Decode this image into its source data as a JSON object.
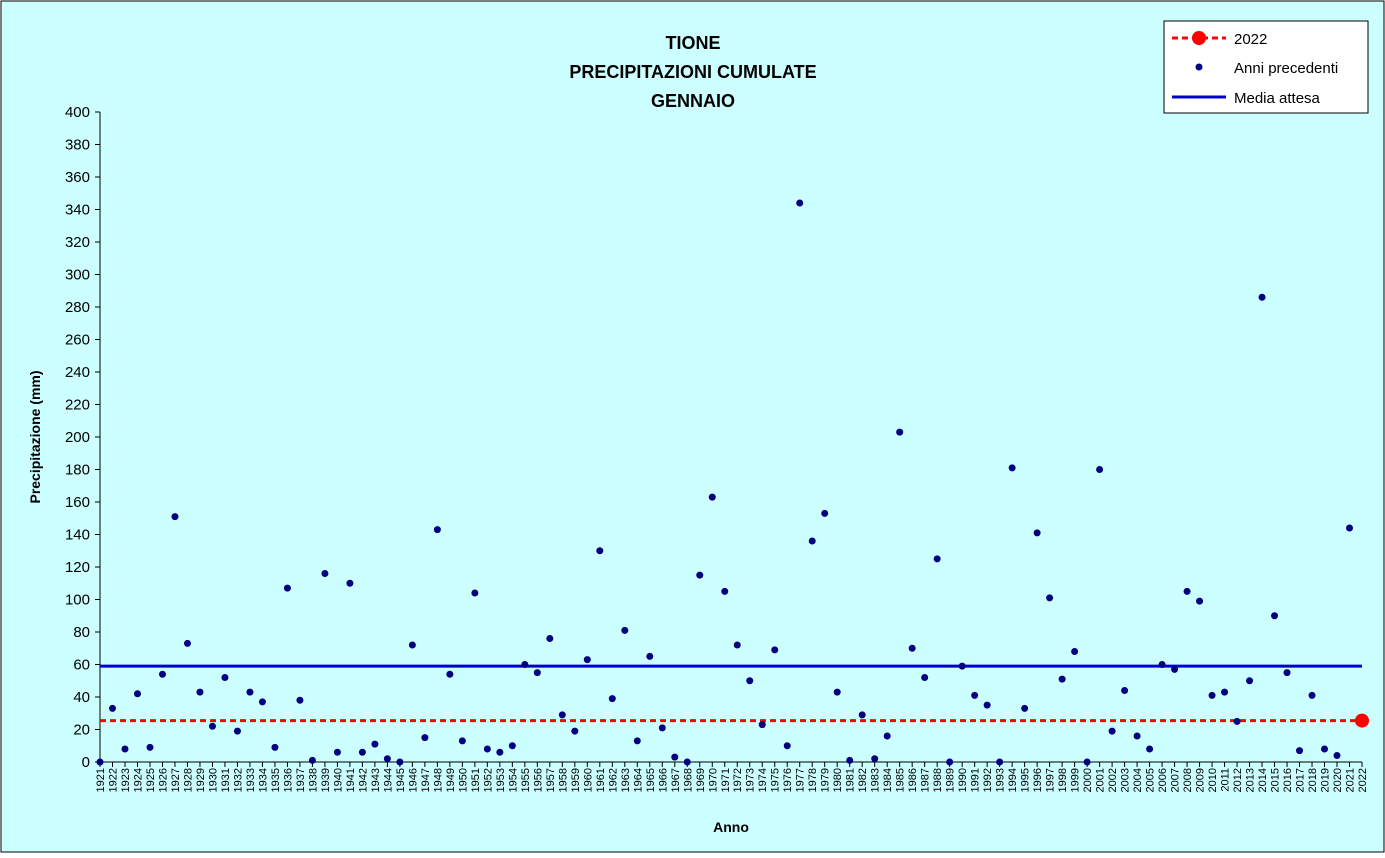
{
  "chart_data": {
    "type": "scatter",
    "title_lines": [
      "TIONE",
      "PRECIPITAZIONI CUMULATE",
      "GENNAIO"
    ],
    "xlabel": "Anno",
    "ylabel": "Precipitazione (mm)",
    "ylim": [
      0,
      400
    ],
    "y_ticks": [
      0,
      20,
      40,
      60,
      80,
      100,
      120,
      140,
      160,
      180,
      200,
      220,
      240,
      260,
      280,
      300,
      320,
      340,
      360,
      380,
      400
    ],
    "x_categories": [
      "1921",
      "1922",
      "1923",
      "1924",
      "1925",
      "1926",
      "1927",
      "1928",
      "1929",
      "1930",
      "1931",
      "1932",
      "1933",
      "1934",
      "1935",
      "1936",
      "1937",
      "1938",
      "1939",
      "1940",
      "1941",
      "1942",
      "1943",
      "1944",
      "1945",
      "1946",
      "1947",
      "1948",
      "1949",
      "1950",
      "1951",
      "1952",
      "1953",
      "1954",
      "1955",
      "1956",
      "1957",
      "1958",
      "1959",
      "1960",
      "1961",
      "1962",
      "1963",
      "1964",
      "1965",
      "1966",
      "1967",
      "1968",
      "1969",
      "1970",
      "1971",
      "1972",
      "1973",
      "1974",
      "1975",
      "1976",
      "1977",
      "1978",
      "1979",
      "1980",
      "1981",
      "1982",
      "1983",
      "1984",
      "1985",
      "1986",
      "1987",
      "1988",
      "1989",
      "1990",
      "1991",
      "1992",
      "1993",
      "1994",
      "1995",
      "1996",
      "1997",
      "1998",
      "1999",
      "2000",
      "2001",
      "2002",
      "2003",
      "2004",
      "2005",
      "2006",
      "2007",
      "2008",
      "2009",
      "2010",
      "2011",
      "2012",
      "2013",
      "2014",
      "2015",
      "2016",
      "2017",
      "2018",
      "2019",
      "2020",
      "2021",
      "2022"
    ],
    "grid": false,
    "legend_position": "top-right",
    "legend": [
      {
        "label": "2022",
        "kind": "dashed-line-with-marker",
        "color": "#ff0000"
      },
      {
        "label": "Anni precedenti",
        "kind": "marker",
        "color": "#000080"
      },
      {
        "label": "Media attesa",
        "kind": "line",
        "color": "#0000cc"
      }
    ],
    "series": [
      {
        "name": "Anni precedenti",
        "color": "#000080",
        "points": [
          {
            "x": "1921",
            "y": 0
          },
          {
            "x": "1922",
            "y": 33
          },
          {
            "x": "1923",
            "y": 8
          },
          {
            "x": "1924",
            "y": 42
          },
          {
            "x": "1925",
            "y": 9
          },
          {
            "x": "1926",
            "y": 54
          },
          {
            "x": "1927",
            "y": 151
          },
          {
            "x": "1928",
            "y": 73
          },
          {
            "x": "1929",
            "y": 43
          },
          {
            "x": "1930",
            "y": 22
          },
          {
            "x": "1931",
            "y": 52
          },
          {
            "x": "1932",
            "y": 19
          },
          {
            "x": "1933",
            "y": 43
          },
          {
            "x": "1934",
            "y": 37
          },
          {
            "x": "1935",
            "y": 9
          },
          {
            "x": "1936",
            "y": 107
          },
          {
            "x": "1937",
            "y": 38
          },
          {
            "x": "1938",
            "y": 1
          },
          {
            "x": "1939",
            "y": 116
          },
          {
            "x": "1940",
            "y": 6
          },
          {
            "x": "1941",
            "y": 110
          },
          {
            "x": "1942",
            "y": 6
          },
          {
            "x": "1943",
            "y": 11
          },
          {
            "x": "1944",
            "y": 2
          },
          {
            "x": "1945",
            "y": 0
          },
          {
            "x": "1946",
            "y": 72
          },
          {
            "x": "1947",
            "y": 15
          },
          {
            "x": "1948",
            "y": 143
          },
          {
            "x": "1949",
            "y": 54
          },
          {
            "x": "1950",
            "y": 13
          },
          {
            "x": "1951",
            "y": 104
          },
          {
            "x": "1952",
            "y": 8
          },
          {
            "x": "1953",
            "y": 6
          },
          {
            "x": "1954",
            "y": 10
          },
          {
            "x": "1955",
            "y": 60
          },
          {
            "x": "1956",
            "y": 55
          },
          {
            "x": "1957",
            "y": 76
          },
          {
            "x": "1958",
            "y": 29
          },
          {
            "x": "1959",
            "y": 19
          },
          {
            "x": "1960",
            "y": 63
          },
          {
            "x": "1961",
            "y": 130
          },
          {
            "x": "1962",
            "y": 39
          },
          {
            "x": "1963",
            "y": 81
          },
          {
            "x": "1964",
            "y": 13
          },
          {
            "x": "1965",
            "y": 65
          },
          {
            "x": "1966",
            "y": 21
          },
          {
            "x": "1967",
            "y": 3
          },
          {
            "x": "1968",
            "y": 0
          },
          {
            "x": "1969",
            "y": 115
          },
          {
            "x": "1970",
            "y": 163
          },
          {
            "x": "1971",
            "y": 105
          },
          {
            "x": "1972",
            "y": 72
          },
          {
            "x": "1973",
            "y": 50
          },
          {
            "x": "1974",
            "y": 23
          },
          {
            "x": "1975",
            "y": 69
          },
          {
            "x": "1976",
            "y": 10
          },
          {
            "x": "1977",
            "y": 344
          },
          {
            "x": "1978",
            "y": 136
          },
          {
            "x": "1979",
            "y": 153
          },
          {
            "x": "1980",
            "y": 43
          },
          {
            "x": "1981",
            "y": 1
          },
          {
            "x": "1982",
            "y": 29
          },
          {
            "x": "1983",
            "y": 2
          },
          {
            "x": "1984",
            "y": 16
          },
          {
            "x": "1985",
            "y": 203
          },
          {
            "x": "1986",
            "y": 70
          },
          {
            "x": "1987",
            "y": 52
          },
          {
            "x": "1988",
            "y": 125
          },
          {
            "x": "1989",
            "y": 0
          },
          {
            "x": "1990",
            "y": 59
          },
          {
            "x": "1991",
            "y": 41
          },
          {
            "x": "1992",
            "y": 35
          },
          {
            "x": "1993",
            "y": 0
          },
          {
            "x": "1994",
            "y": 181
          },
          {
            "x": "1995",
            "y": 33
          },
          {
            "x": "1996",
            "y": 141
          },
          {
            "x": "1997",
            "y": 101
          },
          {
            "x": "1998",
            "y": 51
          },
          {
            "x": "1999",
            "y": 68
          },
          {
            "x": "2000",
            "y": 0
          },
          {
            "x": "2001",
            "y": 180
          },
          {
            "x": "2002",
            "y": 19
          },
          {
            "x": "2003",
            "y": 44
          },
          {
            "x": "2004",
            "y": 16
          },
          {
            "x": "2005",
            "y": 8
          },
          {
            "x": "2006",
            "y": 60
          },
          {
            "x": "2007",
            "y": 57
          },
          {
            "x": "2008",
            "y": 105
          },
          {
            "x": "2009",
            "y": 99
          },
          {
            "x": "2010",
            "y": 41
          },
          {
            "x": "2011",
            "y": 43
          },
          {
            "x": "2012",
            "y": 25
          },
          {
            "x": "2013",
            "y": 50
          },
          {
            "x": "2014",
            "y": 286
          },
          {
            "x": "2015",
            "y": 90
          },
          {
            "x": "2016",
            "y": 55
          },
          {
            "x": "2017",
            "y": 7
          },
          {
            "x": "2018",
            "y": 41
          },
          {
            "x": "2019",
            "y": 8
          },
          {
            "x": "2020",
            "y": 4
          },
          {
            "x": "2021",
            "y": 144
          }
        ]
      },
      {
        "name": "2022",
        "color": "#ff0000",
        "reference_value": 25.5,
        "points": [
          {
            "x": "2022",
            "y": 25.5
          }
        ]
      },
      {
        "name": "Media attesa",
        "color": "#0000cc",
        "reference_value": 59
      }
    ]
  },
  "colors": {
    "plot_background": "#ccffff",
    "border": "#000000",
    "text": "#000000",
    "previous_years_marker": "#000080",
    "current_year": "#ff0000",
    "mean_line": "#0000cc"
  }
}
